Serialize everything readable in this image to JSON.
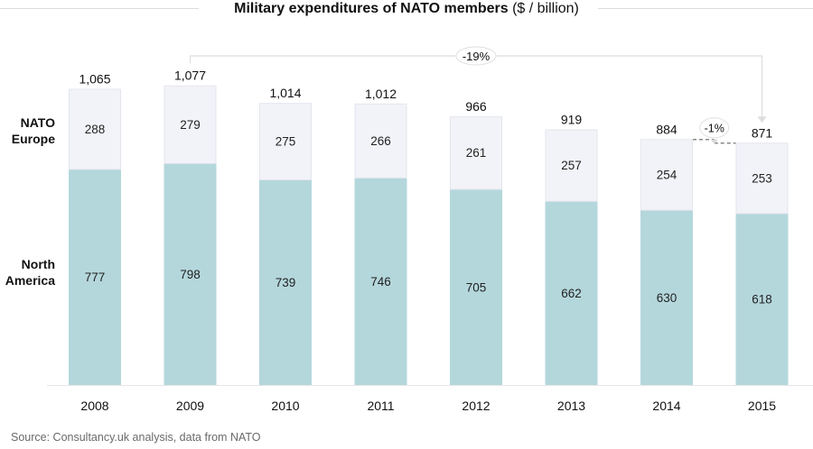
{
  "chart_data": {
    "type": "bar",
    "stacked": true,
    "title": "Military expenditures of NATO members",
    "title_unit": "($ / billion)",
    "xlabel": "",
    "ylabel": "",
    "ylim": [
      0,
      1100
    ],
    "grid": false,
    "legend_placement": "left",
    "categories": [
      "2008",
      "2009",
      "2010",
      "2011",
      "2012",
      "2013",
      "2014",
      "2015"
    ],
    "series": [
      {
        "name": "North America",
        "label": [
          "North",
          "America"
        ],
        "color": "#b4d7dc",
        "values": [
          777,
          798,
          739,
          746,
          705,
          662,
          630,
          618
        ]
      },
      {
        "name": "NATO Europe",
        "label": [
          "NATO",
          "Europe"
        ],
        "color": "#f2f3f8",
        "values": [
          288,
          279,
          275,
          266,
          261,
          257,
          254,
          253
        ]
      }
    ],
    "totals": [
      "1,065",
      "1,077",
      "1,014",
      "1,012",
      "966",
      "919",
      "884",
      "871"
    ],
    "annotations": [
      {
        "text": "-19%",
        "from": "2009",
        "to": "2015",
        "style": "bracket-arrow"
      },
      {
        "text": "-1%",
        "from": "2014",
        "to": "2015",
        "style": "dashed-step"
      }
    ]
  },
  "source": "Source: Consultancy.uk analysis, data from NATO"
}
